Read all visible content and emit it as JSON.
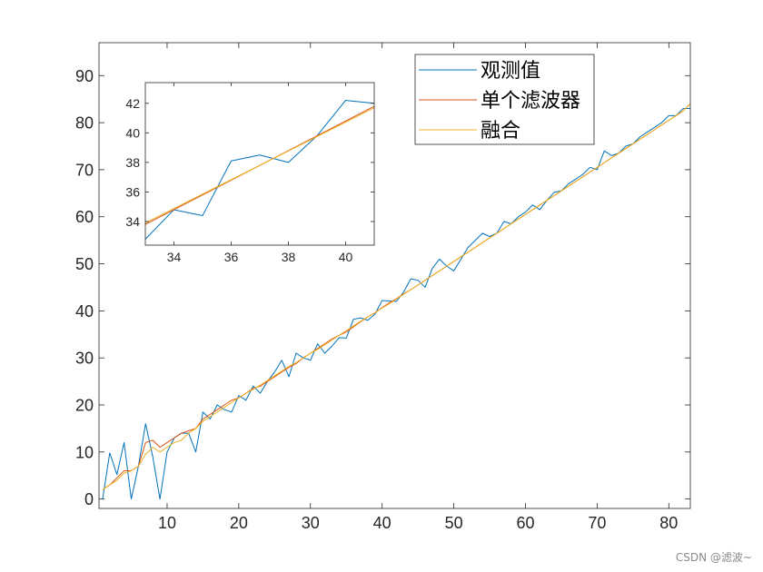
{
  "chart_data": [
    {
      "type": "line",
      "title": "",
      "xlabel": "",
      "ylabel": "",
      "xlim": [
        0.5,
        83
      ],
      "ylim": [
        -2,
        97
      ],
      "xticks": [
        10,
        20,
        30,
        40,
        50,
        60,
        70,
        80
      ],
      "yticks": [
        0,
        10,
        20,
        30,
        40,
        50,
        60,
        70,
        80,
        90
      ],
      "grid": false,
      "legend": {
        "placement": "top-right-inner",
        "entries": [
          "观测值",
          "单个滤波器",
          "融合"
        ]
      },
      "series": [
        {
          "name": "观测值",
          "color": "#0072BD",
          "x": [
            1,
            2,
            3,
            4,
            5,
            6,
            7,
            8,
            9,
            10,
            11,
            12,
            13,
            14,
            15,
            16,
            17,
            18,
            19,
            20,
            21,
            22,
            23,
            24,
            25,
            26,
            27,
            28,
            29,
            30,
            31,
            32,
            33,
            34,
            35,
            36,
            37,
            38,
            39,
            40,
            41,
            42,
            43,
            44,
            45,
            46,
            47,
            48,
            49,
            50,
            51,
            52,
            53,
            54,
            55,
            56,
            57,
            58,
            59,
            60,
            61,
            62,
            63,
            64,
            65,
            66,
            67,
            68,
            69,
            70,
            71,
            72,
            73,
            74,
            75,
            76,
            77,
            78,
            79,
            80,
            81,
            82,
            83
          ],
          "values": [
            0,
            9.8,
            5.2,
            12,
            0,
            7,
            16,
            9,
            0,
            10,
            13,
            14,
            14,
            10,
            18.5,
            17,
            20,
            19,
            18.5,
            22,
            21,
            24,
            22.5,
            25,
            27,
            29.5,
            26,
            31,
            30,
            29.5,
            33,
            31,
            32.5,
            34.3,
            34.2,
            38.2,
            38.5,
            38,
            39.3,
            42.2,
            42.1,
            42,
            44,
            46.8,
            46.5,
            45,
            49,
            51,
            49.5,
            48.5,
            51,
            53.5,
            55,
            56.5,
            55.8,
            56.5,
            59,
            58.5,
            60,
            61,
            62.5,
            61.5,
            63.5,
            65.2,
            65.5,
            67,
            68,
            69,
            70.5,
            70,
            74,
            73,
            73.5,
            75,
            75.5,
            77,
            78,
            79,
            80,
            81.5,
            81.5,
            83,
            83
          ]
        },
        {
          "name": "单个滤波器",
          "color": "#D95319",
          "x": [
            1,
            2,
            3,
            4,
            5,
            6,
            7,
            8,
            9,
            10,
            11,
            12,
            13,
            14,
            15,
            16,
            17,
            18,
            19,
            20,
            21,
            22,
            23,
            24,
            25,
            26,
            27,
            28,
            29,
            30,
            31,
            32,
            33,
            34,
            35,
            36,
            37,
            38,
            39,
            40,
            41,
            42,
            43,
            44,
            45,
            46,
            47,
            48,
            49,
            50,
            51,
            52,
            53,
            54,
            55,
            56,
            57,
            58,
            59,
            60,
            61,
            62,
            63,
            64,
            65,
            66,
            67,
            68,
            69,
            70,
            71,
            72,
            73,
            74,
            75,
            76,
            77,
            78,
            79,
            80,
            81,
            82,
            83
          ],
          "values": [
            2,
            3,
            4.5,
            6,
            6,
            7,
            12,
            12.5,
            11,
            12,
            13,
            14,
            14.5,
            15,
            17,
            18,
            19,
            20,
            21,
            21.5,
            22.5,
            23.5,
            24,
            25,
            26,
            27,
            28,
            28.8,
            30,
            31,
            32,
            33,
            34,
            34.8,
            35.5,
            36.6,
            37.7,
            38.7,
            39.6,
            40.7,
            41.7,
            42.6,
            43.6,
            44.5,
            45.5,
            46.5,
            47.5,
            48.5,
            49.5,
            50.5,
            51.5,
            52.5,
            53.5,
            54.5,
            55.5,
            56.5,
            57.5,
            58.5,
            59.5,
            60.5,
            61.5,
            62.5,
            63.5,
            64.5,
            65.5,
            66.5,
            67.5,
            68.5,
            69.5,
            70.5,
            71.5,
            72.5,
            73.5,
            74.5,
            75.5,
            76.5,
            77.5,
            78.5,
            79.5,
            80.5,
            81.5,
            82.5,
            84
          ]
        },
        {
          "name": "融合",
          "color": "#EDB120",
          "x": [
            1,
            2,
            3,
            4,
            5,
            6,
            7,
            8,
            9,
            10,
            11,
            12,
            13,
            14,
            15,
            16,
            17,
            18,
            19,
            20,
            21,
            22,
            23,
            24,
            25,
            26,
            27,
            28,
            29,
            30,
            31,
            32,
            33,
            34,
            35,
            36,
            37,
            38,
            39,
            40,
            41,
            42,
            43,
            44,
            45,
            46,
            47,
            48,
            49,
            50,
            51,
            52,
            53,
            54,
            55,
            56,
            57,
            58,
            59,
            60,
            61,
            62,
            63,
            64,
            65,
            66,
            67,
            68,
            69,
            70,
            71,
            72,
            73,
            74,
            75,
            76,
            77,
            78,
            79,
            80,
            81,
            82,
            83
          ],
          "values": [
            2,
            3,
            4,
            5.5,
            6,
            7,
            9.5,
            11,
            10,
            11,
            12,
            12.5,
            14,
            15,
            16.5,
            17.5,
            18.5,
            19.5,
            20.5,
            21.5,
            22.5,
            23.3,
            24.2,
            25.2,
            26.2,
            27.2,
            28.2,
            29,
            30,
            31,
            31.8,
            32.8,
            33.8,
            34.8,
            35.8,
            36.8,
            37.8,
            38.7,
            39.6,
            40.6,
            41.5,
            42.5,
            43.5,
            44.5,
            45.5,
            46.5,
            47.5,
            48.5,
            49.5,
            50.5,
            51.5,
            52.5,
            53.5,
            54.5,
            55.5,
            56.5,
            57.5,
            58.5,
            59.5,
            60.5,
            61.5,
            62.5,
            63.5,
            64.5,
            65.5,
            66.5,
            67.5,
            68.5,
            69.5,
            70.5,
            71.5,
            72.5,
            73.5,
            74.5,
            75.5,
            76.5,
            77.5,
            78.5,
            79.5,
            80.5,
            81.5,
            82.5,
            84
          ]
        }
      ]
    },
    {
      "type": "line",
      "title": "",
      "xlabel": "",
      "ylabel": "",
      "xlim": [
        33,
        41
      ],
      "ylim": [
        32.4,
        43.4
      ],
      "xticks": [
        34,
        36,
        38,
        40
      ],
      "yticks": [
        34,
        36,
        38,
        40,
        42
      ],
      "grid": false,
      "legend": null,
      "series": [
        {
          "color": "#0072BD",
          "x": [
            33,
            34,
            35,
            36,
            37,
            38,
            39,
            40,
            41
          ],
          "values": [
            32.8,
            34.8,
            34.4,
            38.1,
            38.5,
            38.0,
            39.8,
            42.2,
            42.0
          ]
        },
        {
          "color": "#D95319",
          "x": [
            33,
            41
          ],
          "values": [
            33.8,
            41.8
          ]
        },
        {
          "color": "#EDB120",
          "x": [
            33,
            41
          ],
          "values": [
            33.9,
            41.7
          ]
        }
      ]
    }
  ],
  "watermark": "CSDN @滤波~"
}
